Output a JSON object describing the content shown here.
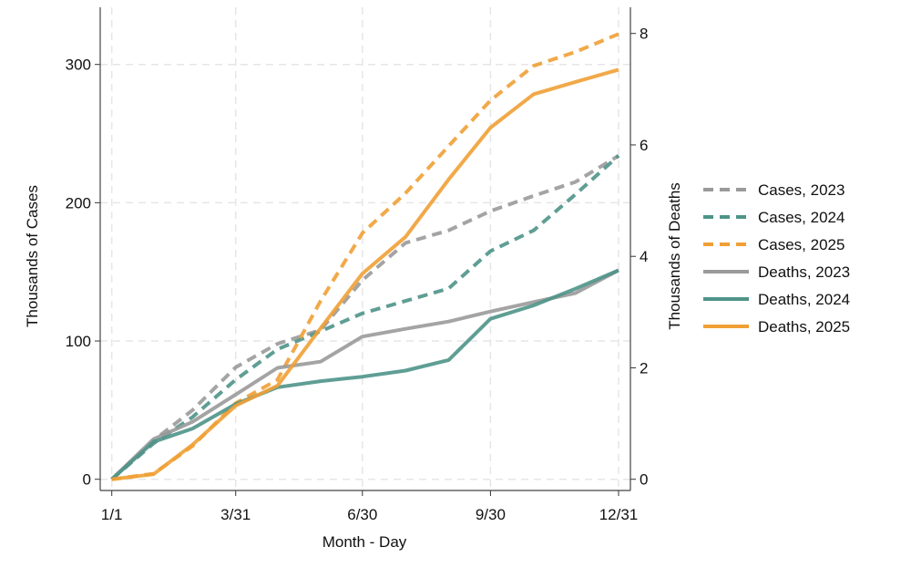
{
  "chart_data": {
    "type": "line",
    "title": "",
    "xlabel": "Month - Day",
    "ylabel_left": "Thousands of Cases",
    "ylabel_right": "Thousands of Deaths",
    "x": [
      "1/1",
      "1/31",
      "2/28",
      "3/31",
      "4/30",
      "5/31",
      "6/30",
      "7/31",
      "8/31",
      "9/30",
      "10/31",
      "11/30",
      "12/31"
    ],
    "x_ticks": [
      "1/1",
      "3/31",
      "6/30",
      "9/30",
      "12/31"
    ],
    "ylim_left": [
      0,
      300
    ],
    "yticks_left": [
      "0",
      "100",
      "200",
      "300"
    ],
    "ylim_right": [
      0,
      8
    ],
    "yticks_right": [
      "0",
      "2",
      "4",
      "6",
      "8"
    ],
    "grid": true,
    "legend_position": "right",
    "series": [
      {
        "name": "Cases, 2023",
        "axis": "left",
        "style": "dashed",
        "color": "#9a9a9a",
        "values": [
          0,
          28,
          50,
          81,
          98,
          108,
          144,
          171,
          180,
          194,
          205,
          215,
          234
        ]
      },
      {
        "name": "Cases, 2024",
        "axis": "left",
        "style": "dashed",
        "color": "#4e9488",
        "values": [
          0,
          26,
          45,
          72,
          94,
          107,
          120,
          129,
          138,
          165,
          180,
          206,
          234
        ]
      },
      {
        "name": "Cases, 2025",
        "axis": "left",
        "style": "dashed",
        "color": "#f0a035",
        "values": [
          0,
          4,
          24,
          55,
          72,
          129,
          178,
          207,
          241,
          274,
          299,
          309,
          322
        ]
      },
      {
        "name": "Deaths, 2023",
        "axis": "right",
        "style": "solid",
        "color": "#9a9a9a",
        "values": [
          0,
          0.72,
          1.03,
          1.52,
          2.0,
          2.11,
          2.56,
          2.7,
          2.83,
          3.01,
          3.18,
          3.34,
          3.75
        ]
      },
      {
        "name": "Deaths, 2024",
        "axis": "right",
        "style": "solid",
        "color": "#4e9488",
        "values": [
          0,
          0.67,
          0.91,
          1.35,
          1.65,
          1.76,
          1.84,
          1.95,
          2.14,
          2.88,
          3.12,
          3.42,
          3.75
        ]
      },
      {
        "name": "Deaths, 2025",
        "axis": "right",
        "style": "solid",
        "color": "#f0a035",
        "values": [
          0,
          0.09,
          0.62,
          1.32,
          1.68,
          2.71,
          3.69,
          4.35,
          5.38,
          6.31,
          6.91,
          7.13,
          7.35
        ]
      }
    ]
  }
}
